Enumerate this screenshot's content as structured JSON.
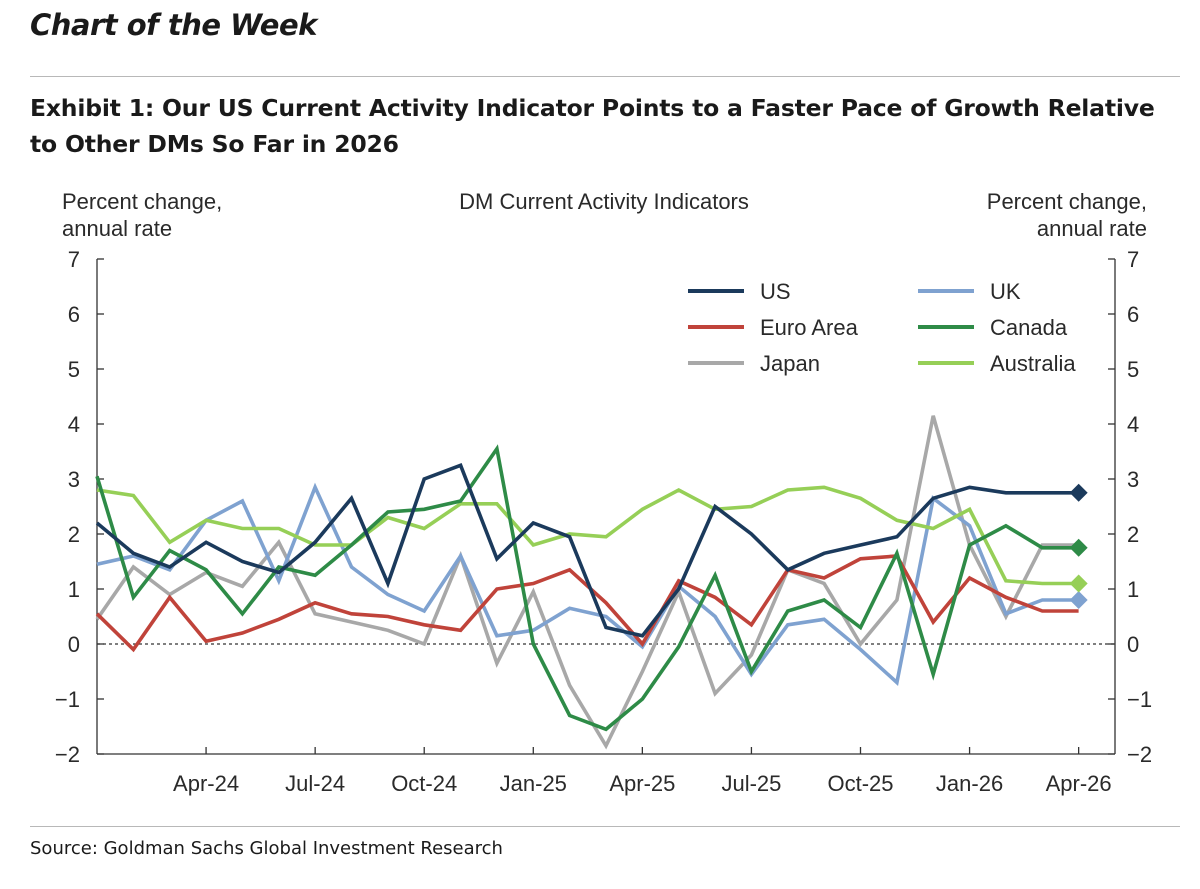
{
  "header": {
    "kicker": "Chart of the Week",
    "exhibit_title": "Exhibit 1: Our US Current Activity Indicator Points to a Faster Pace of Growth Relative to Other DMs So Far in 2026"
  },
  "footer": {
    "source": "Source: Goldman Sachs Global Investment Research"
  },
  "chart_data": {
    "type": "line",
    "title": "DM Current Activity Indicators",
    "ylabel_left": [
      "Percent change,",
      "annual rate"
    ],
    "ylabel_right": [
      "Percent change,",
      "annual rate"
    ],
    "ylim": [
      -2,
      7
    ],
    "yticks": [
      -2,
      -1,
      0,
      1,
      2,
      3,
      4,
      5,
      6,
      7
    ],
    "xlim": [
      "2024-01",
      "2026-05"
    ],
    "xticks": [
      {
        "date": "2024-04",
        "label": "Apr-24"
      },
      {
        "date": "2024-07",
        "label": "Jul-24"
      },
      {
        "date": "2024-10",
        "label": "Oct-24"
      },
      {
        "date": "2025-01",
        "label": "Jan-25"
      },
      {
        "date": "2025-04",
        "label": "Apr-25"
      },
      {
        "date": "2025-07",
        "label": "Jul-25"
      },
      {
        "date": "2025-10",
        "label": "Oct-25"
      },
      {
        "date": "2026-01",
        "label": "Jan-26"
      },
      {
        "date": "2026-04",
        "label": "Apr-26"
      }
    ],
    "zero_line": "dashed",
    "grid": false,
    "legend_position": "top-right",
    "x": [
      "2024-01",
      "2024-02",
      "2024-03",
      "2024-04",
      "2024-05",
      "2024-06",
      "2024-07",
      "2024-08",
      "2024-09",
      "2024-10",
      "2024-11",
      "2024-12",
      "2025-01",
      "2025-02",
      "2025-03",
      "2025-04",
      "2025-05",
      "2025-06",
      "2025-07",
      "2025-08",
      "2025-09",
      "2025-10",
      "2025-11",
      "2025-12",
      "2026-01",
      "2026-02",
      "2026-03",
      "2026-04"
    ],
    "series": [
      {
        "name": "US",
        "color": "#1b3a5c",
        "values": [
          2.2,
          1.65,
          1.4,
          1.85,
          1.5,
          1.3,
          1.85,
          2.65,
          1.1,
          3.0,
          3.25,
          1.55,
          2.2,
          1.95,
          0.3,
          0.15,
          1.0,
          2.5,
          2.0,
          1.35,
          1.65,
          1.8,
          1.95,
          2.65,
          2.85,
          2.75,
          2.75,
          2.75
        ],
        "end_marker": true
      },
      {
        "name": "Euro Area",
        "color": "#c0433a",
        "values": [
          0.55,
          -0.1,
          0.85,
          0.05,
          0.2,
          0.45,
          0.75,
          0.55,
          0.5,
          0.35,
          0.25,
          1.0,
          1.1,
          1.35,
          0.75,
          0.0,
          1.15,
          0.85,
          0.35,
          1.35,
          1.2,
          1.55,
          1.6,
          0.4,
          1.2,
          0.85,
          0.6,
          0.6
        ],
        "end_marker": false
      },
      {
        "name": "Japan",
        "color": "#a8a8a8",
        "values": [
          0.45,
          1.4,
          0.9,
          1.3,
          1.05,
          1.85,
          0.55,
          0.4,
          0.25,
          0.0,
          1.6,
          -0.35,
          0.95,
          -0.75,
          -1.85,
          -0.5,
          0.95,
          -0.9,
          -0.2,
          1.35,
          1.1,
          0.0,
          0.8,
          4.15,
          1.8,
          0.5,
          1.8,
          1.8
        ],
        "end_marker": false
      },
      {
        "name": "UK",
        "color": "#7fa2d0",
        "values": [
          1.45,
          1.6,
          1.35,
          2.25,
          2.6,
          1.15,
          2.85,
          1.4,
          0.9,
          0.6,
          1.6,
          0.15,
          0.25,
          0.65,
          0.5,
          -0.05,
          1.05,
          0.5,
          -0.55,
          0.35,
          0.45,
          -0.1,
          -0.7,
          2.65,
          2.15,
          0.55,
          0.8,
          0.8
        ],
        "end_marker": true
      },
      {
        "name": "Canada",
        "color": "#2e8b47",
        "values": [
          3.05,
          0.85,
          1.7,
          1.35,
          0.55,
          1.4,
          1.25,
          1.8,
          2.4,
          2.45,
          2.6,
          3.55,
          0.0,
          -1.3,
          -1.55,
          -1.0,
          -0.05,
          1.25,
          -0.5,
          0.6,
          0.8,
          0.3,
          1.65,
          -0.55,
          1.8,
          2.15,
          1.75,
          1.75
        ],
        "end_marker": true
      },
      {
        "name": "Australia",
        "color": "#96cf57",
        "values": [
          2.8,
          2.7,
          1.85,
          2.25,
          2.1,
          2.1,
          1.8,
          1.8,
          2.3,
          2.1,
          2.55,
          2.55,
          1.8,
          2.0,
          1.95,
          2.45,
          2.8,
          2.45,
          2.5,
          2.8,
          2.85,
          2.65,
          2.25,
          2.1,
          2.45,
          1.15,
          1.1,
          1.1
        ],
        "end_marker": true
      }
    ]
  }
}
